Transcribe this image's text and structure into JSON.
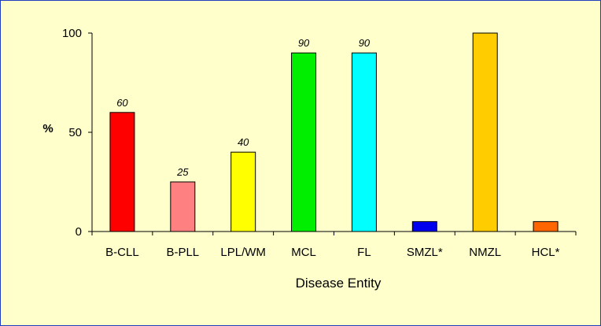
{
  "chart_data": {
    "type": "bar",
    "title": "",
    "xlabel": "Disease Entity",
    "ylabel": "%",
    "ylim": [
      0,
      100
    ],
    "yticks": [
      0,
      50,
      100
    ],
    "grid": false,
    "legend": "none",
    "categories": [
      "B-CLL",
      "B-PLL",
      "LPL/WM",
      "MCL",
      "FL",
      "SMZL*",
      "NMZL",
      "HCL*"
    ],
    "values": [
      60,
      25,
      40,
      90,
      90,
      5,
      100,
      5
    ],
    "data_labels": [
      "60",
      "25",
      "40",
      "90",
      "90",
      "",
      "",
      ""
    ],
    "colors": [
      "#ff0000",
      "#ff8080",
      "#ffff00",
      "#00ee00",
      "#00ffff",
      "#0000ee",
      "#ffcc00",
      "#ff6600"
    ],
    "background": "#ffffcc",
    "border_color": "#1f3fbf"
  }
}
